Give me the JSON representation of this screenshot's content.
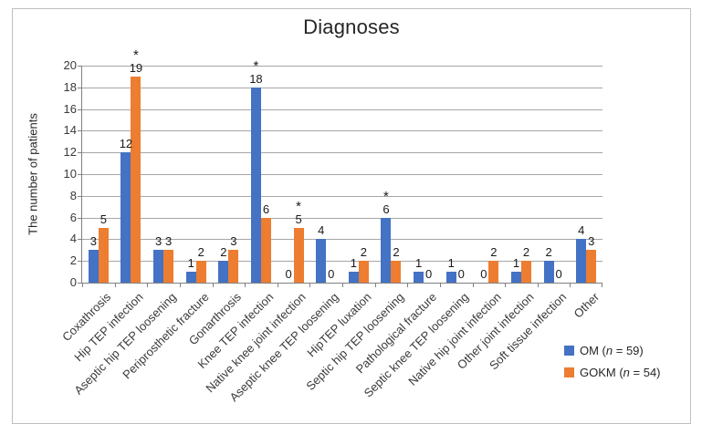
{
  "window": {
    "background": "#FFFFFF",
    "border_color": "#BFBFBF"
  },
  "chart_data": {
    "type": "bar",
    "title": "Diagnoses",
    "xlabel": "",
    "ylabel": "The number of patients",
    "ylim": [
      0,
      20
    ],
    "ytick_step": 2,
    "grid": true,
    "legend_position": "bottom-right",
    "significance_marker": "*",
    "grid_color": "#A6A6A6",
    "axis_color": "#808080",
    "categories": [
      "Coxathrosis",
      "Hip TEP infection",
      "Aseptic hip TEP loosening",
      "Periprosthetic fracture",
      "Gonarthrosis",
      "Knee TEP infection",
      "Native knee joint infection",
      "Aseptic knee TEP loosening",
      "HipTEP luxation",
      "Septic hip TEP loosening",
      "Pathological fracture",
      "Septic knee TEP loosening",
      "Native hip joint infection",
      "Other joint infection",
      "Soft tissue infection",
      "Other"
    ],
    "series": [
      {
        "name": "OM (n = 59)",
        "name_parts": [
          "OM (",
          "n",
          " = 59)"
        ],
        "color": "#4472C4",
        "values": [
          3,
          12,
          3,
          1,
          2,
          18,
          0,
          4,
          1,
          6,
          1,
          1,
          0,
          1,
          2,
          4
        ],
        "starred_indices": [
          5,
          9
        ]
      },
      {
        "name": "GOKM (n = 54)",
        "name_parts": [
          "GOKM (",
          "n",
          " = 54)"
        ],
        "color": "#ED7D31",
        "values": [
          5,
          19,
          3,
          2,
          3,
          6,
          5,
          0,
          2,
          2,
          0,
          0,
          2,
          2,
          0,
          3
        ],
        "starred_indices": [
          1,
          6
        ]
      }
    ]
  }
}
